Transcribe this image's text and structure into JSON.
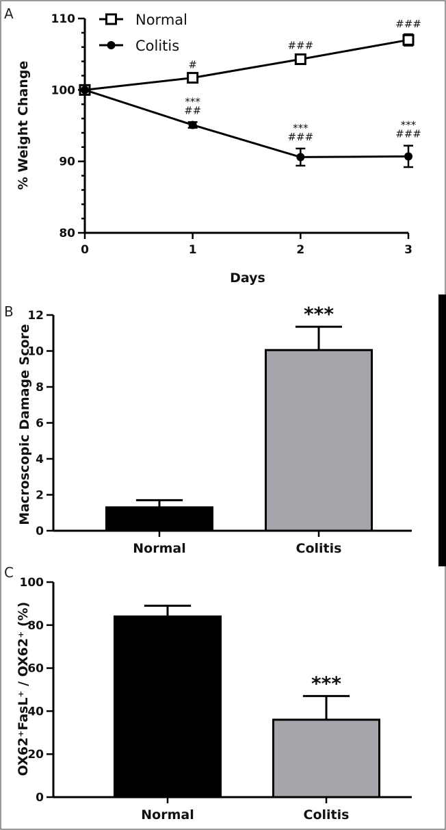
{
  "chart_data": [
    {
      "panel": "A",
      "type": "line",
      "xlabel": "Days",
      "ylabel": "% Weight Change",
      "x": [
        0,
        1,
        2,
        3
      ],
      "xlim": [
        0,
        3
      ],
      "ylim": [
        80,
        110
      ],
      "xticks": [
        "0",
        "1",
        "2",
        "3"
      ],
      "yticks": [
        "80",
        "90",
        "100",
        "110"
      ],
      "legend": {
        "placement": "top-left"
      },
      "series": [
        {
          "name": "Normal",
          "marker": "open-square",
          "values": [
            100,
            101.7,
            104.3,
            107.0
          ],
          "errors": [
            0.3,
            0.4,
            0.5,
            0.8
          ],
          "annotations": [
            "",
            "#",
            "###",
            "###"
          ]
        },
        {
          "name": "Colitis",
          "marker": "filled-circle",
          "values": [
            100,
            95.1,
            90.6,
            90.7
          ],
          "errors": [
            0.3,
            0.4,
            1.2,
            1.5
          ],
          "annotations": [
            "",
            "***\n##",
            "***\n###",
            "***\n###"
          ]
        }
      ]
    },
    {
      "panel": "B",
      "type": "bar",
      "categories": [
        "Normal",
        "Colitis"
      ],
      "values": [
        1.3,
        10.05
      ],
      "errors": [
        0.4,
        1.3
      ],
      "colors": [
        "#000000",
        "#a5a6ab"
      ],
      "ylabel": "Macroscopic Damage Score",
      "ylim": [
        0,
        12
      ],
      "yticks": [
        "0",
        "2",
        "4",
        "6",
        "8",
        "10",
        "12"
      ],
      "annotations": [
        "",
        "***"
      ]
    },
    {
      "panel": "C",
      "type": "bar",
      "categories": [
        "Normal",
        "Colitis"
      ],
      "values": [
        84,
        36
      ],
      "errors": [
        5,
        11
      ],
      "colors": [
        "#000000",
        "#a5a6ab"
      ],
      "ylabel": "OX62⁺FasL⁺ / OX62⁺ (%)",
      "ylim": [
        0,
        100
      ],
      "yticks": [
        "0",
        "20",
        "40",
        "60",
        "80",
        "100"
      ],
      "annotations": [
        "",
        "***"
      ]
    }
  ]
}
